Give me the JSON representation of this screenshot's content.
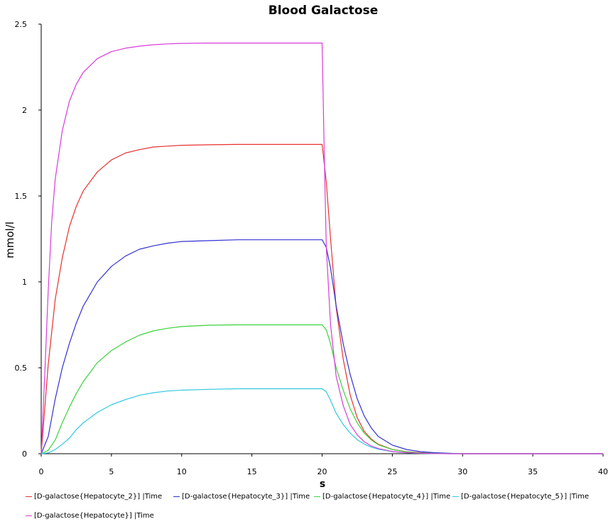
{
  "chart_data": {
    "type": "line",
    "title": "Blood Galactose",
    "xlabel": "s",
    "ylabel": "mmol/l",
    "xlim": [
      0,
      40
    ],
    "ylim": [
      0,
      2.5
    ],
    "xticks": [
      "0",
      "5",
      "10",
      "15",
      "20",
      "25",
      "30",
      "35",
      "40"
    ],
    "yticks": [
      "0",
      "0.5",
      "1",
      "1.5",
      "2",
      "2.5"
    ],
    "grid": false,
    "legend_position": "bottom",
    "series": [
      {
        "name": "[D-galactose{Hepatocyte_2}] |Time",
        "color": "#e8312f",
        "x": [
          0,
          0.5,
          1,
          1.5,
          2,
          2.5,
          3,
          4,
          5,
          6,
          7,
          8,
          9,
          10,
          12,
          14,
          16,
          18,
          20,
          20.3,
          20.6,
          21,
          21.5,
          22,
          22.5,
          23,
          23.5,
          24,
          25,
          26,
          27,
          28,
          29,
          30,
          35,
          40
        ],
        "values": [
          0,
          0.52,
          0.9,
          1.14,
          1.32,
          1.44,
          1.53,
          1.64,
          1.71,
          1.75,
          1.77,
          1.785,
          1.79,
          1.795,
          1.798,
          1.8,
          1.8,
          1.8,
          1.8,
          1.58,
          1.25,
          0.85,
          0.55,
          0.34,
          0.21,
          0.13,
          0.085,
          0.055,
          0.025,
          0.012,
          0.006,
          0.003,
          0.001,
          0,
          0,
          0
        ]
      },
      {
        "name": "[D-galactose{Hepatocyte_3}] |Time",
        "color": "#3232d2",
        "x": [
          0,
          0.5,
          1,
          1.5,
          2,
          2.5,
          3,
          4,
          5,
          6,
          7,
          8,
          9,
          10,
          12,
          14,
          16,
          18,
          20,
          20.3,
          20.6,
          21,
          21.5,
          22,
          22.5,
          23,
          23.5,
          24,
          25,
          26,
          27,
          28,
          29,
          30,
          35,
          40
        ],
        "values": [
          0,
          0.1,
          0.32,
          0.5,
          0.64,
          0.76,
          0.86,
          1.0,
          1.09,
          1.15,
          1.19,
          1.21,
          1.225,
          1.235,
          1.24,
          1.245,
          1.245,
          1.245,
          1.245,
          1.2,
          1.08,
          0.86,
          0.64,
          0.46,
          0.32,
          0.22,
          0.15,
          0.1,
          0.05,
          0.025,
          0.012,
          0.006,
          0.003,
          0,
          0,
          0
        ]
      },
      {
        "name": "[D-galactose{Hepatocyte_4}] |Time",
        "color": "#3cd23c",
        "x": [
          0,
          0.5,
          1,
          1.5,
          2,
          2.5,
          3,
          4,
          5,
          6,
          7,
          8,
          9,
          10,
          12,
          14,
          16,
          18,
          20,
          20.3,
          20.6,
          21,
          21.5,
          22,
          22.5,
          23,
          23.5,
          24,
          25,
          26,
          27,
          28,
          29,
          30,
          35,
          40
        ],
        "values": [
          0,
          0.02,
          0.08,
          0.18,
          0.27,
          0.35,
          0.42,
          0.53,
          0.6,
          0.65,
          0.69,
          0.715,
          0.73,
          0.74,
          0.748,
          0.75,
          0.75,
          0.75,
          0.75,
          0.72,
          0.64,
          0.5,
          0.37,
          0.26,
          0.18,
          0.12,
          0.08,
          0.052,
          0.024,
          0.011,
          0.005,
          0.002,
          0.001,
          0,
          0,
          0
        ]
      },
      {
        "name": "[D-galactose{Hepatocyte_5}] |Time",
        "color": "#30c8e0",
        "x": [
          0,
          0.5,
          1,
          1.5,
          2,
          2.5,
          3,
          4,
          5,
          6,
          7,
          8,
          9,
          10,
          12,
          14,
          16,
          18,
          20,
          20.3,
          20.6,
          21,
          21.5,
          22,
          22.5,
          23,
          23.5,
          24,
          25,
          26,
          27,
          28,
          29,
          30,
          35,
          40
        ],
        "values": [
          0,
          0.005,
          0.025,
          0.055,
          0.09,
          0.14,
          0.18,
          0.24,
          0.285,
          0.315,
          0.34,
          0.355,
          0.365,
          0.37,
          0.375,
          0.378,
          0.378,
          0.378,
          0.378,
          0.36,
          0.31,
          0.235,
          0.17,
          0.12,
          0.082,
          0.056,
          0.038,
          0.026,
          0.012,
          0.005,
          0.002,
          0.001,
          0,
          0,
          0,
          0
        ]
      },
      {
        "name": "[D-galactose{Hepatocyte}] |Time",
        "color": "#d83cd8",
        "x": [
          0,
          0.25,
          0.5,
          0.75,
          1,
          1.5,
          2,
          2.5,
          3,
          4,
          5,
          6,
          7,
          8,
          9,
          10,
          12,
          14,
          16,
          18,
          20,
          20.15,
          20.3,
          20.6,
          21,
          21.5,
          22,
          22.5,
          23,
          23.5,
          24,
          25,
          26,
          27,
          28,
          29,
          30,
          35,
          40
        ],
        "values": [
          0,
          0.45,
          0.95,
          1.35,
          1.6,
          1.88,
          2.05,
          2.15,
          2.22,
          2.3,
          2.34,
          2.36,
          2.372,
          2.38,
          2.385,
          2.388,
          2.39,
          2.39,
          2.39,
          2.39,
          2.39,
          1.75,
          1.2,
          0.75,
          0.45,
          0.28,
          0.17,
          0.11,
          0.07,
          0.045,
          0.03,
          0.013,
          0.006,
          0.003,
          0.001,
          0,
          0,
          0,
          0
        ]
      }
    ]
  }
}
